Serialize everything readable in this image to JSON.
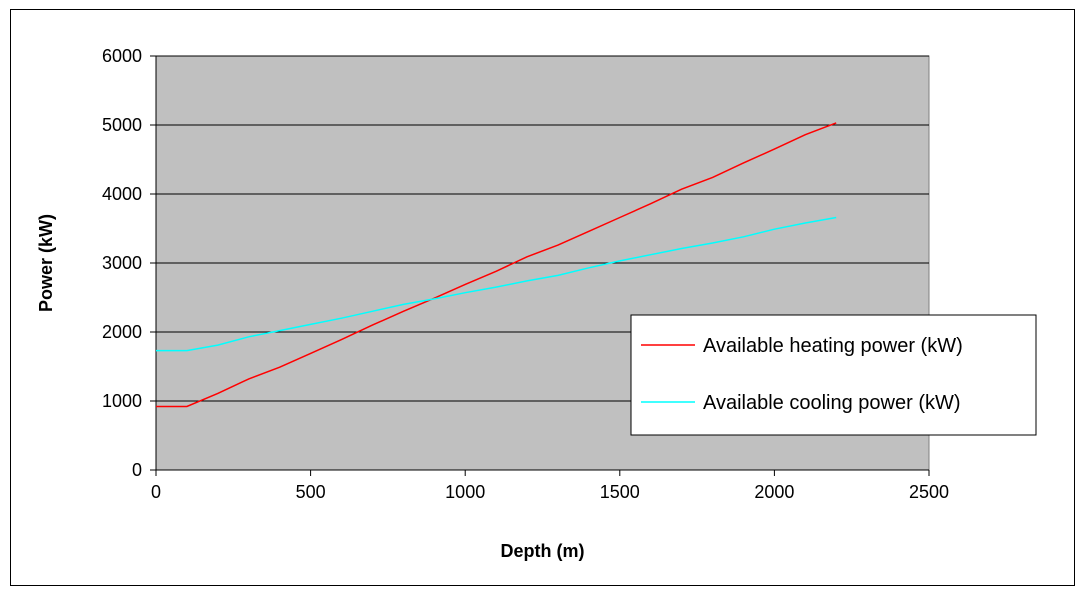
{
  "chart_data": {
    "type": "line",
    "title": "",
    "xlabel": "Depth (m)",
    "ylabel": "Power (kW)",
    "xlim": [
      0,
      2500
    ],
    "ylim": [
      0,
      6000
    ],
    "xticks": [
      0,
      500,
      1000,
      1500,
      2000,
      2500
    ],
    "yticks": [
      0,
      1000,
      2000,
      3000,
      4000,
      5000,
      6000
    ],
    "grid": "horizontal",
    "legend_position": "right",
    "plot_background": "#c0c0c0",
    "series": [
      {
        "name": "Available heating power (kW)",
        "color": "#ff0000",
        "x": [
          0,
          100,
          200,
          300,
          400,
          500,
          600,
          700,
          800,
          900,
          1000,
          1100,
          1200,
          1300,
          1400,
          1500,
          1600,
          1700,
          1800,
          1900,
          2000,
          2100,
          2200
        ],
        "y": [
          920,
          920,
          1110,
          1320,
          1490,
          1690,
          1890,
          2100,
          2300,
          2490,
          2690,
          2880,
          3090,
          3260,
          3460,
          3660,
          3860,
          4070,
          4240,
          4450,
          4650,
          4860,
          5030
        ]
      },
      {
        "name": "Available cooling power (kW)",
        "color": "#00ffff",
        "x": [
          0,
          100,
          200,
          300,
          400,
          500,
          600,
          700,
          800,
          900,
          1000,
          1100,
          1200,
          1300,
          1400,
          1500,
          1600,
          1700,
          1800,
          1900,
          2000,
          2100,
          2200
        ],
        "y": [
          1730,
          1730,
          1810,
          1930,
          2020,
          2110,
          2200,
          2300,
          2400,
          2480,
          2570,
          2650,
          2740,
          2820,
          2930,
          3030,
          3120,
          3210,
          3290,
          3380,
          3490,
          3580,
          3660
        ]
      }
    ]
  }
}
